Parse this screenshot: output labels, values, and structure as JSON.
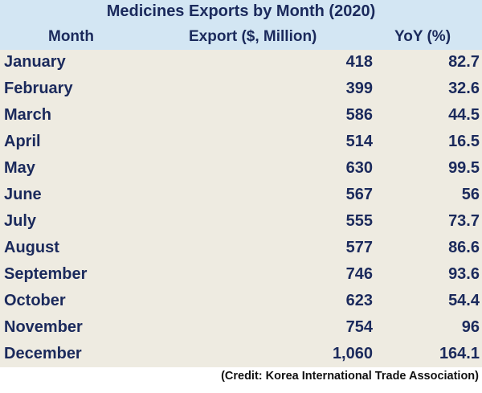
{
  "chart_data": {
    "type": "table",
    "title": "Medicines Exports by Month (2020)",
    "columns": [
      "Month",
      "Export ($, Million)",
      "YoY (%)"
    ],
    "rows": [
      {
        "month": "January",
        "export": "418",
        "yoy": "82.7"
      },
      {
        "month": "February",
        "export": "399",
        "yoy": "32.6"
      },
      {
        "month": "March",
        "export": "586",
        "yoy": "44.5"
      },
      {
        "month": "April",
        "export": "514",
        "yoy": "16.5"
      },
      {
        "month": "May",
        "export": "630",
        "yoy": "99.5"
      },
      {
        "month": "June",
        "export": "567",
        "yoy": "56"
      },
      {
        "month": "July",
        "export": "555",
        "yoy": "73.7"
      },
      {
        "month": "August",
        "export": "577",
        "yoy": "86.6"
      },
      {
        "month": "September",
        "export": "746",
        "yoy": "93.6"
      },
      {
        "month": "October",
        "export": "623",
        "yoy": "54.4"
      },
      {
        "month": "November",
        "export": "754",
        "yoy": "96"
      },
      {
        "month": "December",
        "export": "1,060",
        "yoy": "164.1"
      }
    ],
    "credit": "(Credit: Korea International Trade Association)"
  },
  "colors": {
    "header_bg": "#d3e6f3",
    "body_bg": "#eeebe1",
    "text": "#1b2a5c"
  }
}
